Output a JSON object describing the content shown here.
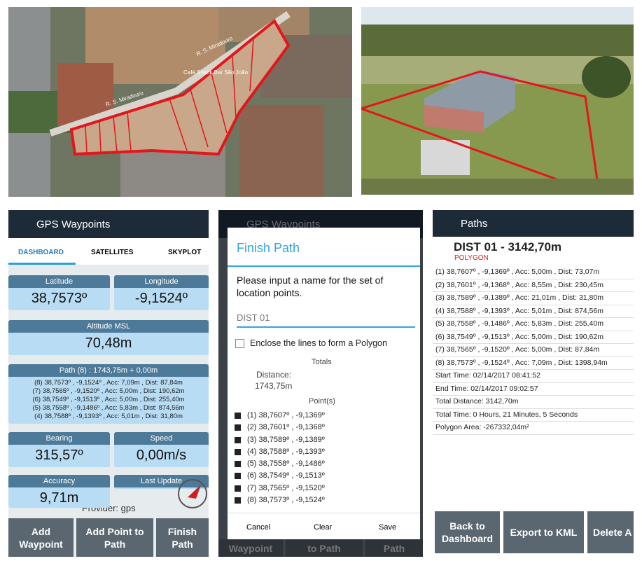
{
  "photos": {
    "map_labels": [
      "R. S. Miradouro",
      "Café Snack Bar São João",
      "R. S. Miradouro"
    ]
  },
  "dashboard": {
    "title": "GPS Waypoints",
    "tabs": [
      "DASHBOARD",
      "SATELLITES",
      "SKYPLOT"
    ],
    "latitude": {
      "label": "Latitude",
      "value": "38,7573º"
    },
    "longitude": {
      "label": "Longitude",
      "value": "-9,1524º"
    },
    "altitude": {
      "label": "Altitude MSL",
      "value": "70,48m"
    },
    "path": {
      "label": "Path (8) : 1743,75m + 0,00m",
      "points": [
        "(8) 38,7573º , -9,1524º , Acc: 7,09m , Dist: 87,84m",
        "(7) 38,7565º , -9,1520º , Acc: 5,00m , Dist: 190,62m",
        "(6) 38,7549º , -9,1513º , Acc: 5,00m , Dist: 255,40m",
        "(5) 38,7558º , -9,1486º , Acc: 5,83m , Dist: 874,56m",
        "(4) 38,7588º , -9,1393º , Acc: 5,01m , Dist: 31,80m"
      ]
    },
    "bearing": {
      "label": "Bearing",
      "value": "315,57º"
    },
    "speed": {
      "label": "Speed",
      "value": "0,00m/s"
    },
    "accuracy": {
      "label": "Accuracy",
      "value": "9,71m"
    },
    "last_update": {
      "label": "Last Update"
    },
    "provider": "Provider: gps",
    "buttons": [
      "Add Waypoint",
      "Add Point to Path",
      "Finish Path"
    ]
  },
  "dialog": {
    "background_title": "GPS Waypoints",
    "background_buttons": [
      "Waypoint",
      "to Path",
      "Path"
    ],
    "title": "Finish Path",
    "prompt": "Please input a name for the set of location points.",
    "name": "DIST 01",
    "polygon_option": "Enclose the lines to form a Polygon",
    "totals": "Totals",
    "distance_label": "Distance:",
    "distance": "1743,75m",
    "points_label": "Point(s)",
    "points": [
      "(1) 38,7607º , -9,1369º",
      "(2) 38,7601º , -9,1368º",
      "(3) 38,7589º , -9,1389º",
      "(4) 38,7588º , -9,1393º",
      "(5) 38,7558º , -9,1486º",
      "(6) 38,7549º , -9,1513º",
      "(7) 38,7565º , -9,1520º",
      "(8) 38,7573º , -9,1524º"
    ],
    "buttons": [
      "Cancel",
      "Clear",
      "Save"
    ]
  },
  "paths": {
    "title": "Paths",
    "name": "DIST 01 - 3142,70m",
    "kind": "POLYGON",
    "points": [
      "(1) 38,7607º , -9,1369º , Acc: 5,00m , Dist: 73,07m",
      "(2) 38,7601º , -9,1368º , Acc: 8,55m , Dist: 230,45m",
      "(3) 38,7589º , -9,1389º , Acc: 21,01m , Dist: 31,80m",
      "(4) 38,7588º , -9,1393º , Acc: 5,01m , Dist: 874,56m",
      "(5) 38,7558º , -9,1486º , Acc: 5,83m , Dist: 255,40m",
      "(6) 38,7549º , -9,1513º , Acc: 5,00m , Dist: 190,62m",
      "(7) 38,7565º , -9,1520º , Acc: 5,00m , Dist: 87,84m",
      "(8) 38,7573º , -9,1524º , Acc: 7,09m , Dist: 1398,94m"
    ],
    "summary": [
      "Start Time: 02/14/2017 08:41:52",
      "End Time: 02/14/2017 09:02:57",
      "Total Distance: 3142,70m",
      "Total Time: 0 Hours, 21 Minutes, 5 Seconds",
      "Polygon Area: -267332,04m²"
    ],
    "buttons": [
      "Back to Dashboard",
      "Export to KML",
      "Delete A"
    ]
  }
}
